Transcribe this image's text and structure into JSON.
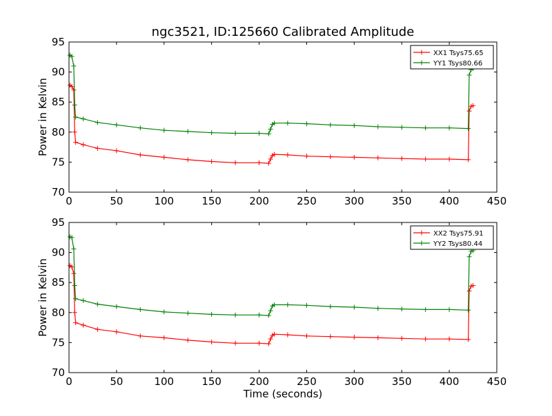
{
  "title": "ngc3521, ID:125660 Calibrated Amplitude",
  "xlabel": "Time (seconds)",
  "colors": {
    "red": "#ff0000",
    "green": "#007f00"
  },
  "chart_data": [
    {
      "type": "line",
      "ylabel": "Power in Kelvin",
      "xlabel": "",
      "xlim": [
        0,
        450
      ],
      "ylim": [
        70,
        95
      ],
      "xticks": [
        0,
        50,
        100,
        150,
        200,
        250,
        300,
        350,
        400,
        450
      ],
      "yticks": [
        70,
        75,
        80,
        85,
        90,
        95
      ],
      "legend_position": "top-right",
      "series": [
        {
          "name": "XX1 Tsys75.65",
          "color": "#ff0000",
          "x": [
            1,
            3,
            5,
            6,
            7,
            15,
            30,
            50,
            75,
            100,
            125,
            150,
            175,
            200,
            210,
            212,
            214,
            216,
            230,
            250,
            275,
            300,
            325,
            350,
            375,
            400,
            420,
            421,
            423,
            425
          ],
          "y": [
            87.8,
            87.6,
            87.0,
            80.0,
            78.3,
            77.9,
            77.3,
            76.9,
            76.2,
            75.8,
            75.4,
            75.1,
            74.9,
            74.9,
            74.8,
            75.5,
            76.1,
            76.3,
            76.2,
            76.0,
            75.9,
            75.8,
            75.7,
            75.6,
            75.5,
            75.5,
            75.4,
            83.5,
            84.3,
            84.4
          ]
        },
        {
          "name": "YY1 Tsys80.66",
          "color": "#007f00",
          "x": [
            1,
            3,
            5,
            6,
            7,
            15,
            30,
            50,
            75,
            100,
            125,
            150,
            175,
            200,
            210,
            212,
            214,
            216,
            230,
            250,
            275,
            300,
            325,
            350,
            375,
            400,
            420,
            421,
            423,
            425
          ],
          "y": [
            92.8,
            92.6,
            91.0,
            84.5,
            82.5,
            82.2,
            81.6,
            81.2,
            80.7,
            80.3,
            80.1,
            79.9,
            79.8,
            79.8,
            79.7,
            80.5,
            81.3,
            81.5,
            81.5,
            81.4,
            81.2,
            81.1,
            80.9,
            80.8,
            80.7,
            80.7,
            80.6,
            89.5,
            90.4,
            90.6
          ]
        }
      ]
    },
    {
      "type": "line",
      "ylabel": "Power in Kelvin",
      "xlabel": "Time (seconds)",
      "xlim": [
        0,
        450
      ],
      "ylim": [
        70,
        95
      ],
      "xticks": [
        0,
        50,
        100,
        150,
        200,
        250,
        300,
        350,
        400,
        450
      ],
      "yticks": [
        70,
        75,
        80,
        85,
        90,
        95
      ],
      "legend_position": "top-right",
      "series": [
        {
          "name": "XX2 Tsys75.91",
          "color": "#ff0000",
          "x": [
            1,
            3,
            5,
            6,
            7,
            15,
            30,
            50,
            75,
            100,
            125,
            150,
            175,
            200,
            210,
            212,
            214,
            216,
            230,
            250,
            275,
            300,
            325,
            350,
            375,
            400,
            420,
            421,
            423,
            425
          ],
          "y": [
            87.8,
            87.6,
            86.5,
            80.0,
            78.3,
            77.9,
            77.2,
            76.8,
            76.1,
            75.8,
            75.4,
            75.1,
            74.9,
            74.9,
            74.8,
            75.6,
            76.2,
            76.4,
            76.3,
            76.1,
            76.0,
            75.9,
            75.8,
            75.7,
            75.6,
            75.6,
            75.5,
            83.6,
            84.4,
            84.5
          ]
        },
        {
          "name": "YY2 Tsys80.44",
          "color": "#007f00",
          "x": [
            1,
            3,
            5,
            6,
            7,
            15,
            30,
            50,
            75,
            100,
            125,
            150,
            175,
            200,
            210,
            212,
            214,
            216,
            230,
            250,
            275,
            300,
            325,
            350,
            375,
            400,
            420,
            421,
            423,
            425
          ],
          "y": [
            92.6,
            92.5,
            90.6,
            84.5,
            82.3,
            82.0,
            81.4,
            81.0,
            80.5,
            80.1,
            79.9,
            79.7,
            79.6,
            79.6,
            79.5,
            80.3,
            81.1,
            81.3,
            81.3,
            81.2,
            81.0,
            80.9,
            80.7,
            80.6,
            80.5,
            80.5,
            80.4,
            89.3,
            90.2,
            90.3
          ]
        }
      ]
    }
  ]
}
